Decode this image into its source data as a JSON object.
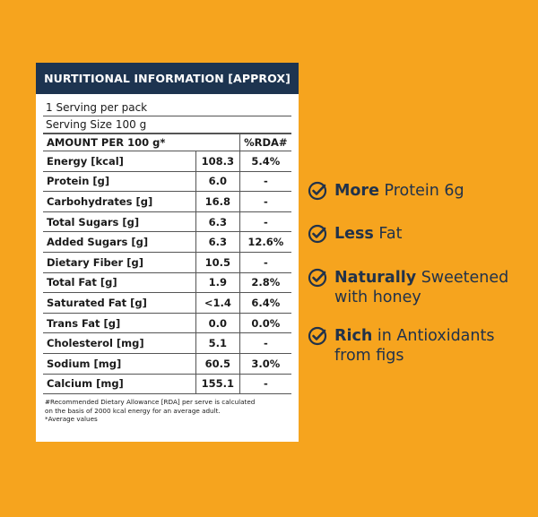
{
  "panel": {
    "title": "NURTITIONAL INFORMATION [APPROX]",
    "serving_per_pack": "1 Serving per pack",
    "serving_size": "Serving Size 100 g",
    "header": {
      "amount": "AMOUNT PER 100 g*",
      "rda": "%RDA#"
    },
    "rows": [
      {
        "label": "Energy [kcal]",
        "value": "108.3",
        "rda": "5.4%"
      },
      {
        "label": "Protein [g]",
        "value": "6.0",
        "rda": "-"
      },
      {
        "label": "Carbohydrates [g]",
        "value": "16.8",
        "rda": "-"
      },
      {
        "label": "Total Sugars [g]",
        "value": "6.3",
        "rda": "-"
      },
      {
        "label": "Added Sugars [g]",
        "value": "6.3",
        "rda": "12.6%"
      },
      {
        "label": "Dietary Fiber [g]",
        "value": "10.5",
        "rda": "-"
      },
      {
        "label": "Total Fat [g]",
        "value": "1.9",
        "rda": "2.8%"
      },
      {
        "label": "Saturated Fat [g]",
        "value": "<1.4",
        "rda": "6.4%"
      },
      {
        "label": "Trans Fat [g]",
        "value": "0.0",
        "rda": "0.0%"
      },
      {
        "label": "Cholesterol [mg]",
        "value": "5.1",
        "rda": "-"
      },
      {
        "label": "Sodium [mg]",
        "value": "60.5",
        "rda": "3.0%"
      },
      {
        "label": "Calcium [mg]",
        "value": "155.1",
        "rda": "-"
      }
    ],
    "footnote_1": "#Recommended Dietary Allowance [RDA] per serve is calculated",
    "footnote_2": "on the basis of 2000 kcal energy for an average adult.",
    "footnote_3": "*Average values"
  },
  "claims": [
    {
      "bold": "More",
      "rest": " Protein 6g",
      "line2": ""
    },
    {
      "bold": "Less",
      "rest": " Fat",
      "line2": ""
    },
    {
      "bold": "Naturally",
      "rest": " Sweetened",
      "line2": "with honey"
    },
    {
      "bold": "Rich",
      "rest": " in Antioxidants",
      "line2": "from figs"
    }
  ],
  "icons": {
    "claim": "check-circle-icon"
  },
  "colors": {
    "background": "#f6a41e",
    "header": "#1d3450",
    "text": "#21324a"
  }
}
